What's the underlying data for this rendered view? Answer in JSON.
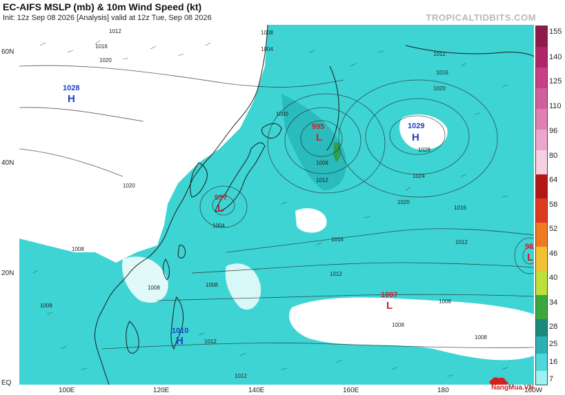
{
  "header": {
    "title": "EC-AIFS MSLP (mb) & 10m Wind Speed (kt)",
    "subtitle": "Init: 12z Sep 08 2026   [Analysis]   valid at 12z Tue, Sep 08 2026",
    "brand": "TROPICALTIDBITS.COM"
  },
  "axes": {
    "lat_labels": [
      "60N",
      "40N",
      "20N",
      "EQ"
    ],
    "lon_labels": [
      "100E",
      "120E",
      "140E",
      "160E",
      "180",
      "160W"
    ]
  },
  "colorbar": {
    "labels": [
      "155",
      "140",
      "125",
      "110",
      "96",
      "80",
      "64",
      "58",
      "52",
      "46",
      "40",
      "34",
      "28",
      "25",
      "16",
      "7"
    ],
    "colors": [
      "#8e1a4a",
      "#b0246a",
      "#c64086",
      "#d35e9c",
      "#e07fb2",
      "#eba6cb",
      "#f6d0e1",
      "#b21818",
      "#de3a22",
      "#f07a22",
      "#f2c232",
      "#bde03a",
      "#3aa83c",
      "#1b8a7a",
      "#2bb1b6",
      "#4fd8dc",
      "#9df2f2"
    ]
  },
  "pressure_systems": [
    {
      "value": "1028",
      "type": "H",
      "color": "#1c3fc8"
    },
    {
      "value": "995",
      "type": "L",
      "color": "#d01c2c"
    },
    {
      "value": "1029",
      "type": "H",
      "color": "#1c3fc8"
    },
    {
      "value": "997",
      "type": "L",
      "color": "#d01c2c"
    },
    {
      "value": "1007",
      "type": "L",
      "color": "#d01c2c"
    },
    {
      "value": "1010",
      "type": "H",
      "color": "#1c3fc8"
    },
    {
      "value": "98",
      "type": "L",
      "color": "#d01c2c"
    }
  ],
  "isobar_labels": [
    "1012",
    "1016",
    "1020",
    "1004",
    "1008",
    "1000",
    "1024",
    "1028"
  ],
  "watermark": {
    "text": "NangMua.VN"
  }
}
